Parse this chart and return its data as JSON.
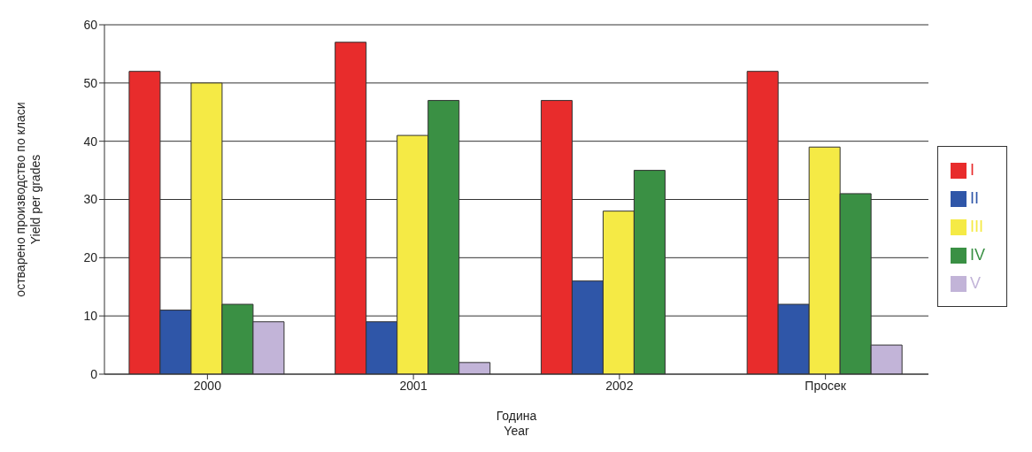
{
  "chart_data": {
    "type": "bar",
    "xlabel": "Година\nYear",
    "ylabel": "остварено производство по класи\nYield per grades",
    "categories": [
      "2000",
      "2001",
      "2002",
      "Просек"
    ],
    "series": [
      {
        "name": "I",
        "color": "#e82c2c",
        "values": [
          52,
          57,
          47,
          52
        ]
      },
      {
        "name": "II",
        "color": "#2f56a8",
        "values": [
          11,
          9,
          16,
          12
        ]
      },
      {
        "name": "III",
        "color": "#f5ea45",
        "values": [
          50,
          41,
          28,
          39
        ]
      },
      {
        "name": "IV",
        "color": "#3a9044",
        "values": [
          12,
          47,
          35,
          31
        ]
      },
      {
        "name": "V",
        "color": "#c2b4d8",
        "values": [
          9,
          2,
          0,
          5
        ]
      }
    ],
    "ylim": [
      0,
      60
    ],
    "yticks": [
      0,
      10,
      20,
      30,
      40,
      50,
      60
    ],
    "grid": "y",
    "legend": "right"
  }
}
